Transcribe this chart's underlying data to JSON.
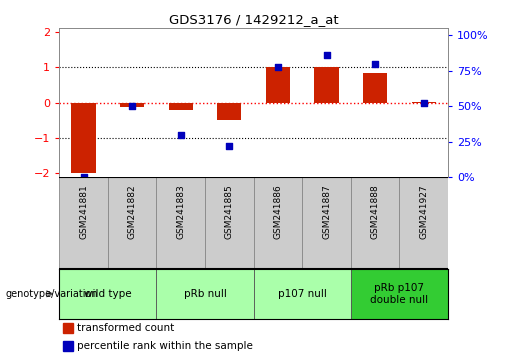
{
  "title": "GDS3176 / 1429212_a_at",
  "samples": [
    "GSM241881",
    "GSM241882",
    "GSM241883",
    "GSM241885",
    "GSM241886",
    "GSM241887",
    "GSM241888",
    "GSM241927"
  ],
  "red_bars": [
    -2.0,
    -0.12,
    -0.22,
    -0.5,
    1.02,
    1.02,
    0.85,
    0.03
  ],
  "blue_dots": [
    0.0,
    50.0,
    30.0,
    22.0,
    78.0,
    86.0,
    80.0,
    52.0
  ],
  "groups": [
    {
      "label": "wild type",
      "start": 0,
      "end": 2,
      "color": "#aaffaa"
    },
    {
      "label": "pRb null",
      "start": 2,
      "end": 4,
      "color": "#aaffaa"
    },
    {
      "label": "p107 null",
      "start": 4,
      "end": 6,
      "color": "#aaffaa"
    },
    {
      "label": "pRb p107\ndouble null",
      "start": 6,
      "end": 8,
      "color": "#33cc33"
    }
  ],
  "ylim_left": [
    -2.1,
    2.1
  ],
  "ylim_right": [
    0,
    105
  ],
  "left_ticks": [
    -2,
    -1,
    0,
    1,
    2
  ],
  "right_ticks": [
    0,
    25,
    50,
    75,
    100
  ],
  "right_tick_labels": [
    "0%",
    "25%",
    "50%",
    "75%",
    "100%"
  ],
  "bar_color": "#CC2200",
  "dot_color": "#0000BB",
  "bar_width": 0.5,
  "dot_size": 25,
  "legend_bar_label": "transformed count",
  "legend_dot_label": "percentile rank within the sample",
  "genotype_label": "genotype/variation",
  "background_color": "#ffffff",
  "plot_bg": "#ffffff",
  "sample_bg": "#cccccc",
  "fig_width": 5.15,
  "fig_height": 3.54,
  "dpi": 100
}
